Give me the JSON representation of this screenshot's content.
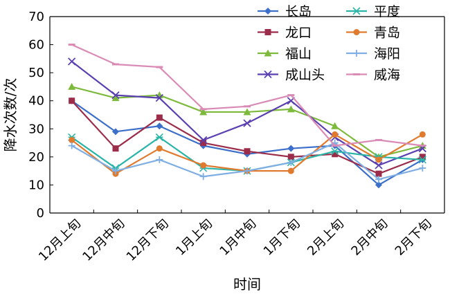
{
  "chart_data": {
    "type": "line",
    "xlabel": "时间",
    "ylabel": "降水次数/次",
    "ylim": [
      0,
      70
    ],
    "yticks": [
      0,
      10,
      20,
      30,
      40,
      50,
      60,
      70
    ],
    "grid": false,
    "legend_position": "top-right",
    "categories": [
      "12月上旬",
      "12月中旬",
      "12月下旬",
      "1月上旬",
      "1月中旬",
      "1月下旬",
      "2月上旬",
      "2月中旬",
      "2月下旬"
    ],
    "series": [
      {
        "name": "长岛",
        "color": "#3C6FC9",
        "marker": "diamond",
        "values": [
          40,
          29,
          31,
          24,
          21,
          23,
          24,
          10,
          19
        ]
      },
      {
        "name": "龙口",
        "color": "#9B2D4A",
        "marker": "square",
        "values": [
          40,
          23,
          34,
          25,
          22,
          20,
          21,
          14,
          20
        ]
      },
      {
        "name": "福山",
        "color": "#7DBA3C",
        "marker": "triangle",
        "values": [
          45,
          41,
          42,
          36,
          36,
          37,
          31,
          20,
          24
        ]
      },
      {
        "name": "成山头",
        "color": "#5A3FB0",
        "marker": "x",
        "values": [
          54,
          42,
          41,
          26,
          32,
          40,
          27,
          17,
          23
        ]
      },
      {
        "name": "平度",
        "color": "#2BB5A8",
        "marker": "asterisk",
        "values": [
          27,
          16,
          27,
          16,
          15,
          18,
          22,
          20,
          19
        ]
      },
      {
        "name": "青岛",
        "color": "#E07A2E",
        "marker": "circle",
        "values": [
          26,
          14,
          23,
          17,
          15,
          15,
          28,
          19,
          28
        ]
      },
      {
        "name": "海阳",
        "color": "#7FAEE3",
        "marker": "plus",
        "values": [
          24,
          15,
          19,
          13,
          15,
          18,
          25,
          12,
          16
        ]
      },
      {
        "name": "威海",
        "color": "#D98BB5",
        "marker": "dash",
        "values": [
          60,
          53,
          52,
          37,
          38,
          42,
          24,
          26,
          24
        ]
      }
    ]
  }
}
